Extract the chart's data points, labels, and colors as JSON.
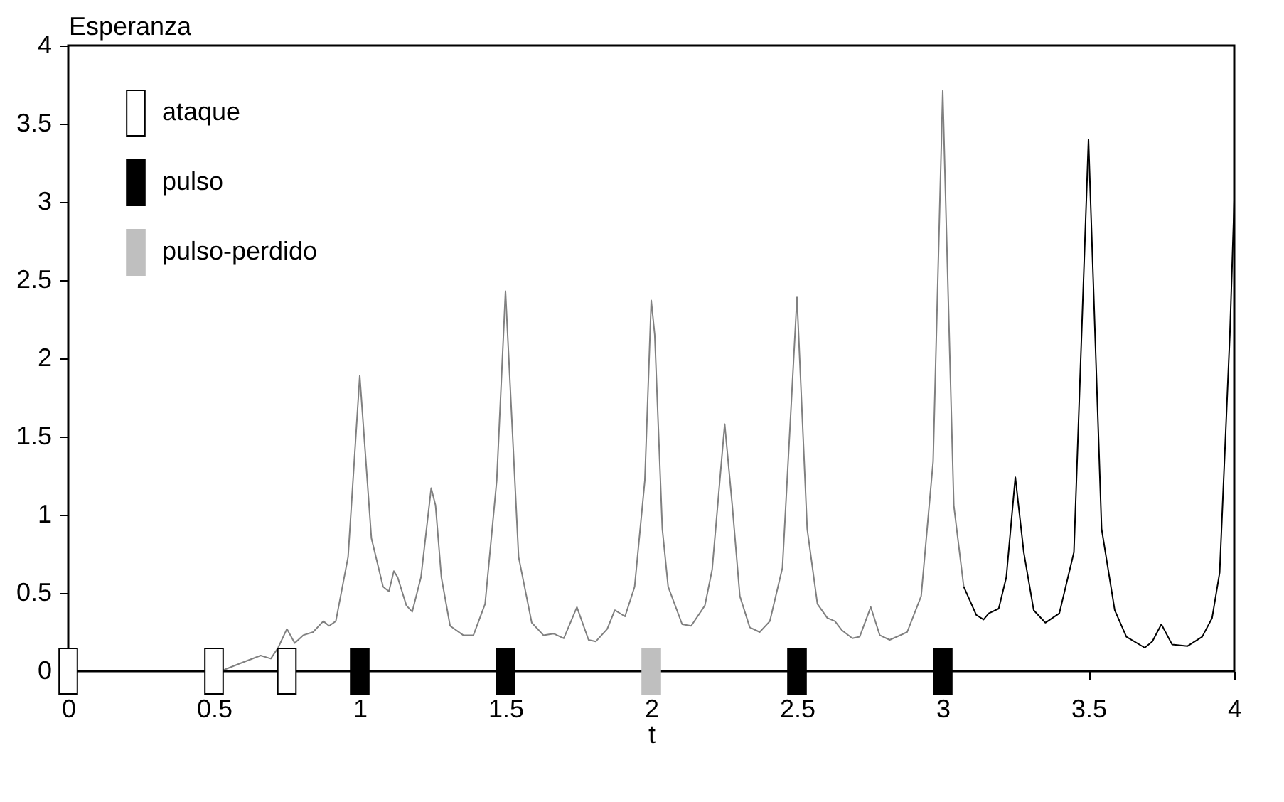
{
  "chart_data": {
    "type": "line",
    "ylabel": "Esperanza",
    "xlabel": "t",
    "xlim": [
      0,
      4
    ],
    "ylim": [
      0,
      4
    ],
    "xticks": [
      0,
      0.5,
      1,
      1.5,
      2,
      2.5,
      3,
      3.5,
      4
    ],
    "yticks": [
      0,
      0.5,
      1,
      1.5,
      2,
      2.5,
      3,
      3.5,
      4
    ],
    "grid": false,
    "legend": "top left",
    "line_style": "solid",
    "series": [
      {
        "color": "#808080",
        "x": [
          0.523,
          0.59,
          0.66,
          0.695,
          0.72,
          0.75,
          0.777,
          0.806,
          0.84,
          0.875,
          0.895,
          0.918,
          0.96,
          1.0,
          1.04,
          1.08,
          1.1,
          1.117,
          1.13,
          1.16,
          1.18,
          1.21,
          1.245,
          1.26,
          1.28,
          1.31,
          1.355,
          1.39,
          1.43,
          1.47,
          1.5,
          1.545,
          1.59,
          1.63,
          1.665,
          1.7,
          1.745,
          1.785,
          1.81,
          1.849,
          1.875,
          1.91,
          1.943,
          1.978,
          2.0,
          2.012,
          2.038,
          2.058,
          2.106,
          2.137,
          2.184,
          2.209,
          2.252,
          2.278,
          2.304,
          2.338,
          2.372,
          2.407,
          2.45,
          2.5,
          2.535,
          2.57,
          2.604,
          2.63,
          2.655,
          2.69,
          2.715,
          2.753,
          2.784,
          2.818,
          2.878,
          2.926,
          2.967,
          3.0,
          3.038,
          3.072
        ],
        "values": [
          0,
          0.05,
          0.1,
          0.08,
          0.15,
          0.27,
          0.18,
          0.23,
          0.25,
          0.32,
          0.29,
          0.32,
          0.73,
          1.89,
          0.85,
          0.54,
          0.51,
          0.64,
          0.6,
          0.42,
          0.38,
          0.6,
          1.17,
          1.06,
          0.6,
          0.29,
          0.23,
          0.23,
          0.43,
          1.22,
          2.43,
          0.73,
          0.31,
          0.23,
          0.24,
          0.21,
          0.41,
          0.2,
          0.19,
          0.27,
          0.39,
          0.35,
          0.54,
          1.22,
          2.37,
          2.15,
          0.91,
          0.54,
          0.3,
          0.29,
          0.42,
          0.65,
          1.58,
          1.06,
          0.48,
          0.28,
          0.25,
          0.32,
          0.66,
          2.39,
          0.91,
          0.43,
          0.34,
          0.32,
          0.26,
          0.21,
          0.22,
          0.41,
          0.23,
          0.2,
          0.25,
          0.48,
          1.34,
          3.71,
          1.06,
          0.54
        ]
      },
      {
        "color": "#000000",
        "x": [
          3.072,
          3.115,
          3.14,
          3.158,
          3.192,
          3.218,
          3.249,
          3.278,
          3.312,
          3.352,
          3.4,
          3.45,
          3.5,
          3.545,
          3.59,
          3.63,
          3.693,
          3.719,
          3.75,
          3.787,
          3.839,
          3.89,
          3.924,
          3.95,
          3.985,
          4.0
        ],
        "values": [
          0.54,
          0.36,
          0.33,
          0.37,
          0.4,
          0.6,
          1.24,
          0.76,
          0.39,
          0.31,
          0.37,
          0.76,
          3.4,
          0.91,
          0.39,
          0.22,
          0.15,
          0.19,
          0.3,
          0.17,
          0.16,
          0.22,
          0.34,
          0.63,
          2.15,
          3.01
        ]
      },
      {
        "type": "scatter",
        "name": "ataque",
        "color": "#ffffff",
        "marker": "square",
        "x": [
          0,
          0.5,
          0.75
        ],
        "values": [
          0,
          0,
          0
        ]
      },
      {
        "type": "scatter",
        "name": "pulso",
        "color": "#000000",
        "marker": "square",
        "x": [
          1,
          1.5,
          2.5,
          3
        ],
        "values": [
          0,
          0,
          0,
          0
        ]
      },
      {
        "type": "scatter",
        "name": "pulso-perdido",
        "color": "#bfbfbf",
        "marker": "square",
        "x": [
          2
        ],
        "values": [
          0
        ]
      }
    ]
  }
}
